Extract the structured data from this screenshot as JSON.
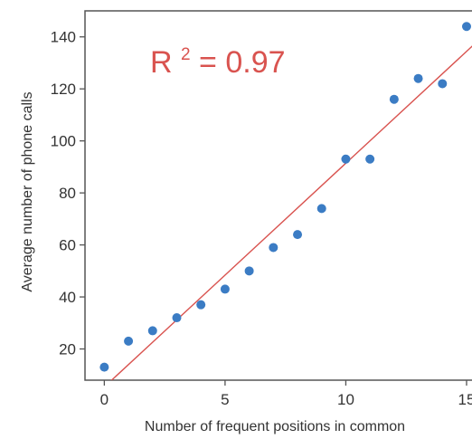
{
  "chart_data": {
    "type": "scatter",
    "title": "",
    "xlabel": "Number of frequent positions in common",
    "ylabel": "Average number of phone calls",
    "xlim": [
      -0.8,
      15.3
    ],
    "ylim": [
      8,
      150
    ],
    "xticks": [
      0,
      5,
      10,
      15
    ],
    "yticks": [
      20,
      40,
      60,
      80,
      100,
      120,
      140
    ],
    "xtick_labels": [
      "0",
      "5",
      "10",
      "15"
    ],
    "ytick_labels": [
      "20",
      "40",
      "60",
      "80",
      "100",
      "120",
      "140"
    ],
    "grid": false,
    "legend": "none",
    "points": {
      "x": [
        0,
        1,
        2,
        3,
        4,
        5,
        6,
        7,
        8,
        9,
        10,
        11,
        12,
        13,
        14,
        15
      ],
      "y": [
        13,
        23,
        27,
        32,
        37,
        43,
        50,
        59,
        64,
        74,
        93,
        93,
        116,
        124,
        122,
        144
      ],
      "color": "#3b7cc4"
    },
    "fit_line": {
      "x": [
        -0.8,
        15.3
      ],
      "y": [
        -1.5,
        137
      ],
      "color": "#d9534f"
    },
    "annotation": {
      "base": "R",
      "sup": "2",
      "rest": " = 0.97",
      "color": "#d9534f"
    },
    "frame_color": "#555555"
  }
}
